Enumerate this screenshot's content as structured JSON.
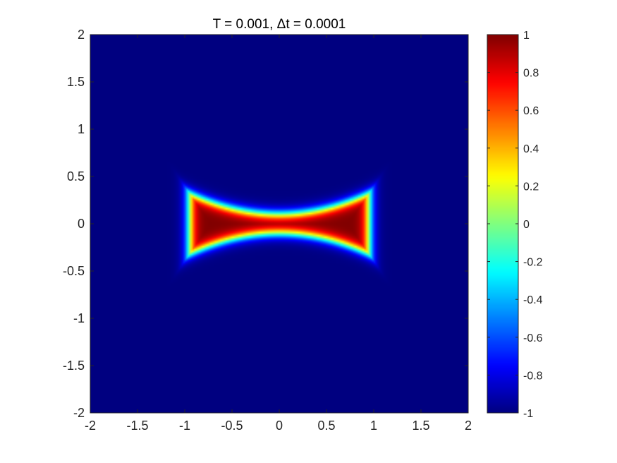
{
  "chart_data": {
    "type": "heatmap",
    "title": "T = 0.001,  Δt = 0.0001",
    "xlabel": "",
    "ylabel": "",
    "xlim": [
      -2,
      2
    ],
    "ylim": [
      -2,
      2
    ],
    "x_ticks": [
      -2,
      -1.5,
      -1,
      -0.5,
      0,
      0.5,
      1,
      1.5,
      2
    ],
    "y_ticks": [
      -2,
      -1.5,
      -1,
      -0.5,
      0,
      0.5,
      1,
      1.5,
      2
    ],
    "x_tick_labels": [
      "-2",
      "-1.5",
      "-1",
      "-0.5",
      "0",
      "0.5",
      "1",
      "1.5",
      "2"
    ],
    "y_tick_labels": [
      "-2",
      "-1.5",
      "-1",
      "-0.5",
      "0",
      "0.5",
      "1",
      "1.5",
      "2"
    ],
    "colormap": "jet",
    "clim": [
      -1,
      1
    ],
    "colorbar_ticks": [
      -1,
      -0.8,
      -0.6,
      -0.4,
      -0.2,
      0,
      0.2,
      0.4,
      0.6,
      0.8,
      1
    ],
    "colorbar_tick_labels": [
      "-1",
      "-0.8",
      "-0.6",
      "-0.4",
      "-0.2",
      "0",
      "0.2",
      "0.4",
      "0.6",
      "0.8",
      "1"
    ],
    "background_value": -1,
    "shape": {
      "description": "dumbbell",
      "x_half_width": 0.95,
      "half_height_at_ends": 0.32,
      "half_height_at_center": 0.1,
      "interface_width": 0.07,
      "peak_value": 1
    },
    "grid": false
  }
}
